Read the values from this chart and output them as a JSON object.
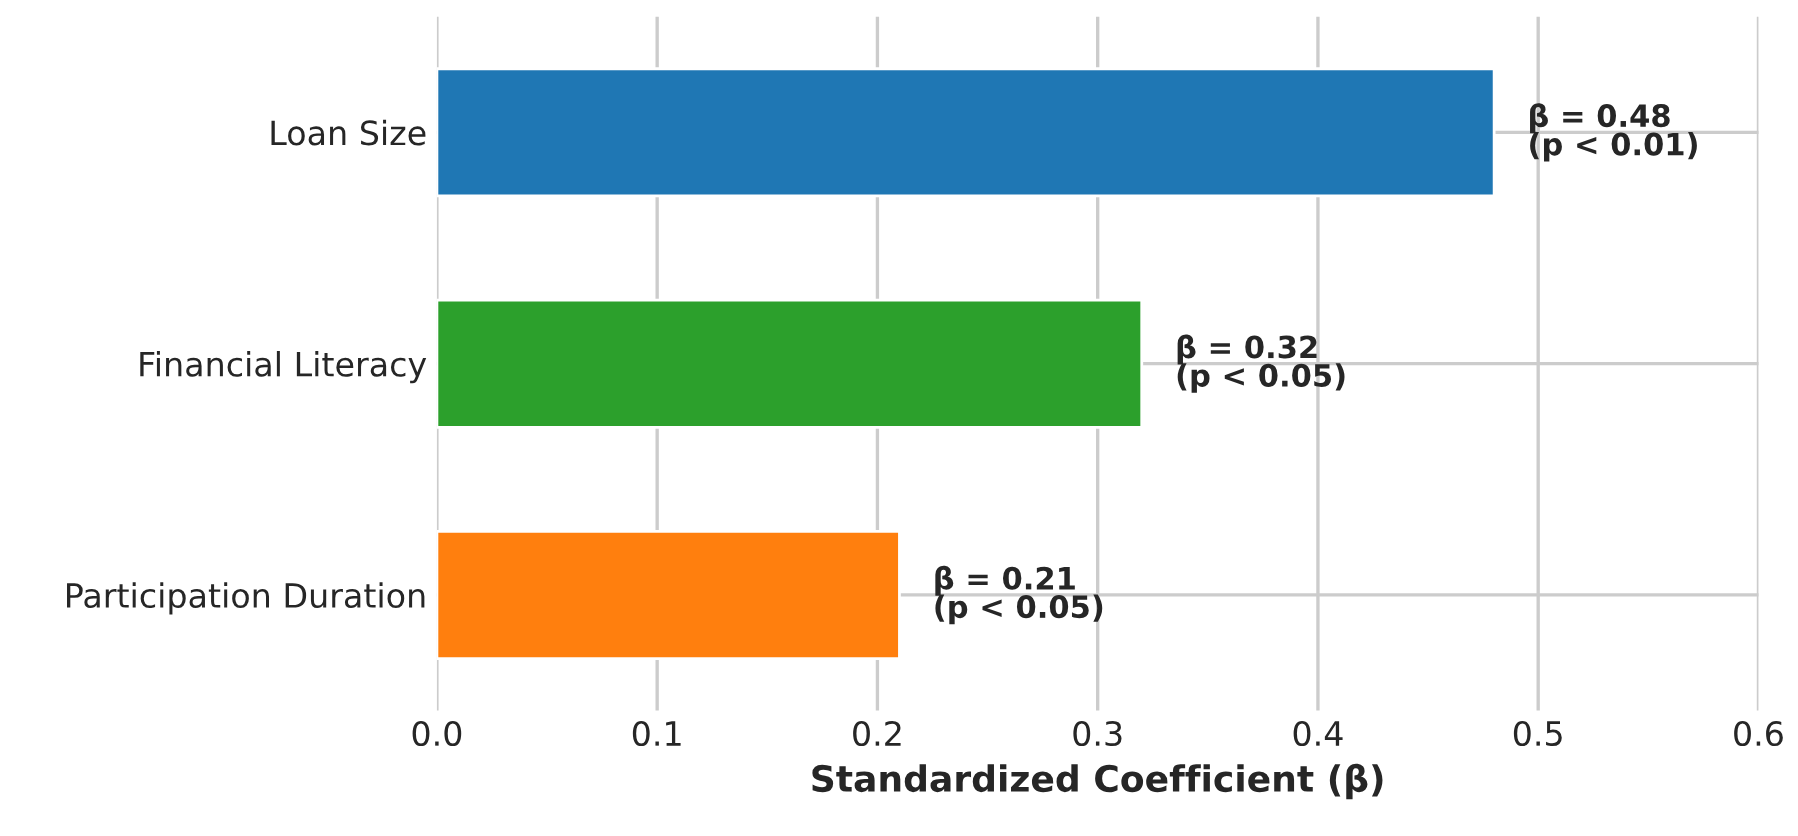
{
  "chart_data": {
    "type": "bar",
    "orientation": "horizontal",
    "xlabel": "Standardized Coefficient (β)",
    "categories": [
      "Loan Size",
      "Financial Literacy",
      "Participation Duration"
    ],
    "values": [
      0.48,
      0.32,
      0.21
    ],
    "colors": [
      "#1f77b4",
      "#2ca02c",
      "#ff7f0e"
    ],
    "value_labels": [
      "β = 0.48\n(p < 0.01)",
      "β = 0.32\n(p < 0.05)",
      "β = 0.21\n(p < 0.05)"
    ],
    "xlim": [
      0,
      0.6
    ],
    "xticks": [
      {
        "value": 0,
        "label": "0.0"
      },
      0.1,
      0.2,
      0.3,
      0.4,
      0.5,
      0.6
    ],
    "grid": true,
    "legend": false
  }
}
